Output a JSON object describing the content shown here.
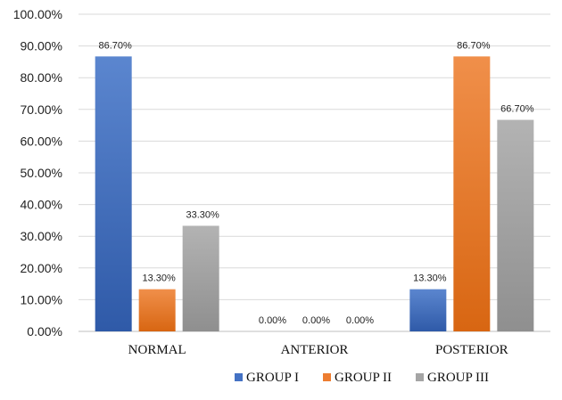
{
  "chart_data": {
    "type": "bar",
    "categories": [
      "NORMAL",
      "ANTERIOR",
      "POSTERIOR"
    ],
    "series": [
      {
        "name": "GROUP I",
        "values": [
          86.7,
          0.0,
          13.3
        ],
        "color": "#4472c4"
      },
      {
        "name": "GROUP II",
        "values": [
          13.3,
          0.0,
          86.7
        ],
        "color": "#ed7d31"
      },
      {
        "name": "GROUP III",
        "values": [
          33.3,
          0.0,
          66.7
        ],
        "color": "#a5a5a5"
      }
    ],
    "data_labels": [
      [
        "86.70%",
        "0.00%",
        "13.30%"
      ],
      [
        "13.30%",
        "0.00%",
        "86.70%"
      ],
      [
        "33.30%",
        "0.00%",
        "66.70%"
      ]
    ],
    "y_ticks": [
      "0.00%",
      "10.00%",
      "20.00%",
      "30.00%",
      "40.00%",
      "50.00%",
      "60.00%",
      "70.00%",
      "80.00%",
      "90.00%",
      "100.00%"
    ],
    "ylim": [
      0,
      100
    ],
    "grid": true,
    "legend": "bottom",
    "title": "",
    "xlabel": "",
    "ylabel": ""
  }
}
